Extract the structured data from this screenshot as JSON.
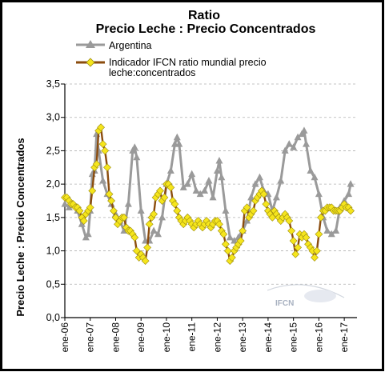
{
  "chart_data": {
    "type": "line",
    "title": "Ratio",
    "subtitle": "Precio Leche : Precio Concentrados",
    "ylabel": "Precio Leche : Precio Concentrados",
    "xlabel": "",
    "ylim": [
      0,
      3.5
    ],
    "yticks": [
      "0,0",
      "0,5",
      "1,0",
      "1,5",
      "2,0",
      "2,5",
      "3,0",
      "3,5"
    ],
    "xticks": [
      "ene-06",
      "ene-07",
      "ene-08",
      "ene-09",
      "ene-10",
      "ene-11",
      "ene-12",
      "ene-13",
      "ene-14",
      "ene-15",
      "ene-16",
      "ene-17"
    ],
    "grid": "horizontal dashed",
    "legend": "top",
    "watermark": "IFCN",
    "series": [
      {
        "name": "Argentina",
        "color": "#9a9a9a",
        "marker": "triangle",
        "x": [
          2006.0,
          2006.17,
          2006.33,
          2006.5,
          2006.67,
          2006.83,
          2006.92,
          2007.0,
          2007.08,
          2007.17,
          2007.25,
          2007.33,
          2007.5,
          2007.67,
          2007.83,
          2008.0,
          2008.17,
          2008.33,
          2008.5,
          2008.67,
          2008.75,
          2008.83,
          2009.0,
          2009.17,
          2009.33,
          2009.5,
          2009.67,
          2009.83,
          2010.0,
          2010.17,
          2010.33,
          2010.42,
          2010.5,
          2010.67,
          2010.83,
          2011.0,
          2011.17,
          2011.33,
          2011.5,
          2011.67,
          2011.83,
          2012.0,
          2012.08,
          2012.17,
          2012.33,
          2012.5,
          2012.67,
          2012.83,
          2013.0,
          2013.17,
          2013.33,
          2013.5,
          2013.67,
          2013.83,
          2014.0,
          2014.17,
          2014.33,
          2014.5,
          2014.67,
          2014.83,
          2015.0,
          2015.17,
          2015.33,
          2015.42,
          2015.5,
          2015.67,
          2015.83,
          2016.0,
          2016.17,
          2016.33,
          2016.5,
          2016.67,
          2016.83,
          2017.0,
          2017.17,
          2017.25
        ],
        "values": [
          1.7,
          1.65,
          1.7,
          1.6,
          1.4,
          1.2,
          1.25,
          1.6,
          2.15,
          2.2,
          2.75,
          2.5,
          2.05,
          1.85,
          1.7,
          1.55,
          1.45,
          1.3,
          1.7,
          2.5,
          2.55,
          2.4,
          1.6,
          1.15,
          1.15,
          1.3,
          1.25,
          1.5,
          2.0,
          2.2,
          2.6,
          2.7,
          2.6,
          1.95,
          2.0,
          2.15,
          1.9,
          1.85,
          1.9,
          2.05,
          1.8,
          2.2,
          2.35,
          2.1,
          1.6,
          1.2,
          1.15,
          1.2,
          1.3,
          1.45,
          1.8,
          2.0,
          2.1,
          1.9,
          1.85,
          1.6,
          1.8,
          2.05,
          2.5,
          2.6,
          2.55,
          2.7,
          2.75,
          2.8,
          2.6,
          2.2,
          2.1,
          1.85,
          1.5,
          1.3,
          1.25,
          1.3,
          1.65,
          1.75,
          1.85,
          2.0
        ]
      },
      {
        "name": "Indicador IFCN ratio mundial precio leche:concentrados",
        "color": "#8b4c0e",
        "marker": "diamond",
        "markerColor": "#f5e51c",
        "x": [
          2006.0,
          2006.08,
          2006.17,
          2006.25,
          2006.33,
          2006.42,
          2006.5,
          2006.58,
          2006.67,
          2006.75,
          2006.83,
          2006.92,
          2007.0,
          2007.08,
          2007.17,
          2007.25,
          2007.33,
          2007.42,
          2007.5,
          2007.58,
          2007.67,
          2007.75,
          2007.83,
          2007.92,
          2008.0,
          2008.08,
          2008.17,
          2008.25,
          2008.33,
          2008.42,
          2008.5,
          2008.58,
          2008.67,
          2008.75,
          2008.83,
          2008.92,
          2009.0,
          2009.08,
          2009.17,
          2009.25,
          2009.33,
          2009.42,
          2009.5,
          2009.58,
          2009.67,
          2009.75,
          2009.83,
          2009.92,
          2010.0,
          2010.08,
          2010.17,
          2010.25,
          2010.33,
          2010.42,
          2010.5,
          2010.58,
          2010.67,
          2010.75,
          2010.83,
          2010.92,
          2011.0,
          2011.08,
          2011.17,
          2011.25,
          2011.33,
          2011.42,
          2011.5,
          2011.58,
          2011.67,
          2011.75,
          2011.83,
          2011.92,
          2012.0,
          2012.08,
          2012.17,
          2012.25,
          2012.33,
          2012.42,
          2012.5,
          2012.58,
          2012.67,
          2012.75,
          2012.83,
          2012.92,
          2013.0,
          2013.08,
          2013.17,
          2013.25,
          2013.33,
          2013.42,
          2013.5,
          2013.58,
          2013.67,
          2013.75,
          2013.83,
          2013.92,
          2014.0,
          2014.08,
          2014.17,
          2014.25,
          2014.33,
          2014.42,
          2014.5,
          2014.58,
          2014.67,
          2014.75,
          2014.83,
          2014.92,
          2015.0,
          2015.08,
          2015.17,
          2015.25,
          2015.33,
          2015.42,
          2015.5,
          2015.58,
          2015.67,
          2015.75,
          2015.83,
          2015.92,
          2016.0,
          2016.08,
          2016.17,
          2016.25,
          2016.33,
          2016.42,
          2016.5,
          2016.58,
          2016.67,
          2016.75,
          2016.83,
          2016.92,
          2017.0,
          2017.08,
          2017.17,
          2017.25
        ],
        "values": [
          1.8,
          1.8,
          1.75,
          1.7,
          1.7,
          1.65,
          1.65,
          1.6,
          1.5,
          1.45,
          1.55,
          1.6,
          1.65,
          1.9,
          2.25,
          2.3,
          2.8,
          2.85,
          2.6,
          2.5,
          2.25,
          1.85,
          1.75,
          1.6,
          1.5,
          1.4,
          1.45,
          1.5,
          1.5,
          1.35,
          1.3,
          1.3,
          1.25,
          1.2,
          1.0,
          0.9,
          0.95,
          0.9,
          0.85,
          1.05,
          1.4,
          1.5,
          1.55,
          1.8,
          1.85,
          1.9,
          1.75,
          1.8,
          2.0,
          2.0,
          1.95,
          1.75,
          1.7,
          1.6,
          1.5,
          1.45,
          1.4,
          1.45,
          1.5,
          1.45,
          1.4,
          1.35,
          1.4,
          1.45,
          1.4,
          1.35,
          1.4,
          1.45,
          1.4,
          1.35,
          1.4,
          1.45,
          1.45,
          1.4,
          1.3,
          1.25,
          1.1,
          1.0,
          0.85,
          0.9,
          1.0,
          1.05,
          1.1,
          1.15,
          1.3,
          1.6,
          1.65,
          1.5,
          1.55,
          1.6,
          1.75,
          1.8,
          1.85,
          1.9,
          1.85,
          1.7,
          1.6,
          1.55,
          1.5,
          1.6,
          1.55,
          1.5,
          1.45,
          1.5,
          1.55,
          1.5,
          1.45,
          1.3,
          1.15,
          0.95,
          1.05,
          1.25,
          1.2,
          1.25,
          1.2,
          1.1,
          1.05,
          1.0,
          0.9,
          1.0,
          1.25,
          1.5,
          1.6,
          1.6,
          1.65,
          1.65,
          1.65,
          1.6,
          1.6,
          1.6,
          1.6,
          1.65,
          1.7,
          1.65,
          1.65,
          1.6
        ]
      }
    ]
  }
}
